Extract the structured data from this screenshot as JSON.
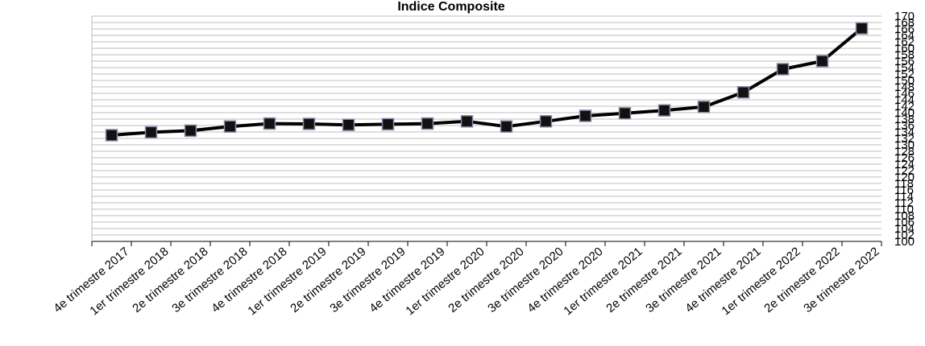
{
  "chart_data": {
    "type": "line",
    "title": "Indice Composite",
    "categories": [
      "4e trimestre 2017",
      "1er trimestre 2018",
      "2e trimestre 2018",
      "3e trimestre 2018",
      "4e trimestre 2018",
      "1er trimestre 2019",
      "2e trimestre 2019",
      "3e trimestre 2019",
      "4e trimestre 2019",
      "1er trimestre 2020",
      "2e trimestre 2020",
      "3e trimestre 2020",
      "4e trimestre 2020",
      "1er trimestre 2021",
      "2e trimestre 2021",
      "3e trimestre 2021",
      "4e trimestre 2021",
      "1er trimestre 2022",
      "2e trimestre 2022",
      "3e trimestre 2022"
    ],
    "series": [
      {
        "values": [
          133.0,
          133.9,
          134.4,
          135.7,
          136.6,
          136.5,
          136.2,
          136.4,
          136.6,
          137.3,
          135.7,
          137.3,
          139.0,
          139.8,
          140.7,
          141.8,
          146.3,
          153.5,
          156.0,
          166.2
        ]
      }
    ],
    "y_ticks": [
      100,
      102,
      104,
      106,
      108,
      110,
      112,
      114,
      116,
      118,
      120,
      122,
      124,
      126,
      128,
      130,
      132,
      134,
      136,
      138,
      140,
      142,
      144,
      146,
      148,
      150,
      152,
      154,
      156,
      158,
      160,
      162,
      164,
      166,
      168,
      170
    ],
    "ylim": [
      100,
      170
    ],
    "grid": true,
    "legend": "none",
    "colors": {
      "line": "#000000",
      "marker_fill": "#111111",
      "marker_stroke": "#8a8aaa",
      "grid": "#bdbdbd",
      "axis": "#000000"
    }
  }
}
